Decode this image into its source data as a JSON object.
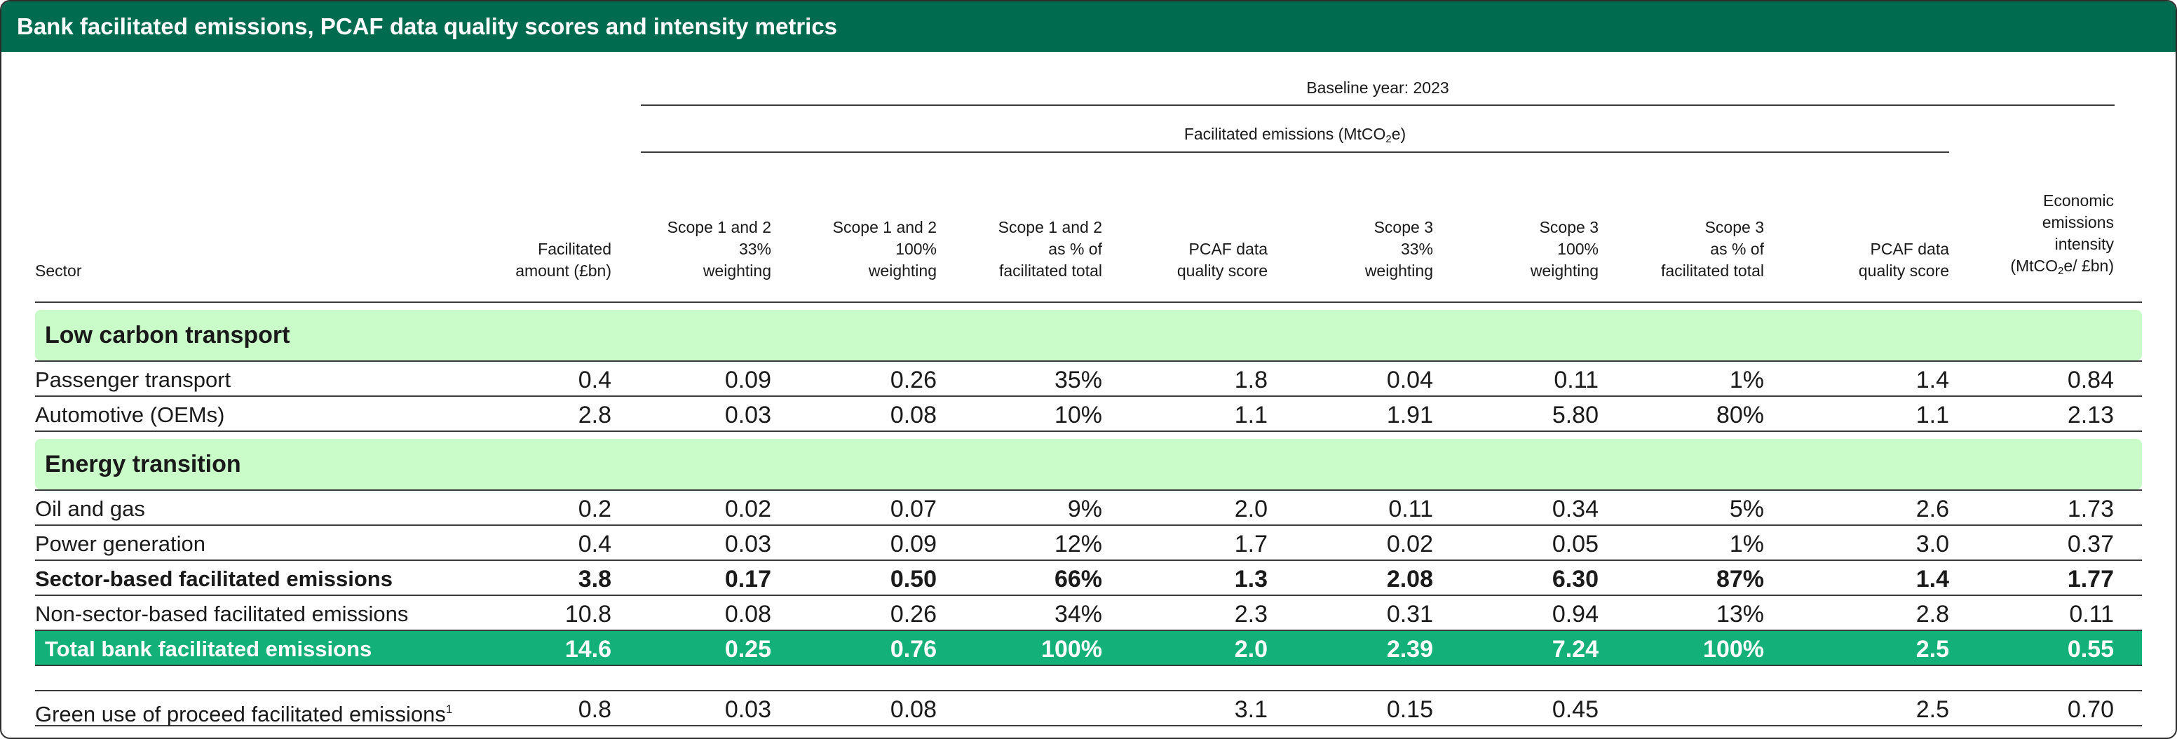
{
  "title": "Bank facilitated emissions, PCAF data quality scores and intensity metrics",
  "baseline_label": "Baseline year: 2023",
  "facilitated_emissions_label": "Facilitated emissions (MtCO",
  "facilitated_emissions_sub": "2",
  "facilitated_emissions_suffix": "e)",
  "columns": {
    "sector": "Sector",
    "amount": [
      "Facilitated",
      "amount (£bn)"
    ],
    "s12_33": [
      "Scope 1 and 2",
      "33%",
      "weighting"
    ],
    "s12_100": [
      "Scope 1 and 2",
      "100%",
      "weighting"
    ],
    "s12_pct": [
      "Scope 1 and 2",
      "as % of",
      "facilitated total"
    ],
    "pcaf1": [
      "PCAF data",
      "quality score"
    ],
    "s3_33": [
      "Scope 3",
      "33%",
      "weighting"
    ],
    "s3_100": [
      "Scope 3",
      "100%",
      "weighting"
    ],
    "s3_pct": [
      "Scope 3",
      "as % of",
      "facilitated total"
    ],
    "pcaf2": [
      "PCAF data",
      "quality score"
    ],
    "intensity": [
      "Economic",
      "emissions",
      "intensity",
      "(MtCO",
      "2",
      "e/ £bn)"
    ]
  },
  "sections": {
    "low_carbon": "Low carbon transport",
    "energy": "Energy transition"
  },
  "rows": {
    "passenger": [
      "Passenger transport",
      "0.4",
      "0.09",
      "0.26",
      "35%",
      "1.8",
      "0.04",
      "0.11",
      "1%",
      "1.4",
      "0.84"
    ],
    "automotive": [
      "Automotive (OEMs)",
      "2.8",
      "0.03",
      "0.08",
      "10%",
      "1.1",
      "1.91",
      "5.80",
      "80%",
      "1.1",
      "2.13"
    ],
    "oil_gas": [
      "Oil and gas",
      "0.2",
      "0.02",
      "0.07",
      "9%",
      "2.0",
      "0.11",
      "0.34",
      "5%",
      "2.6",
      "1.73"
    ],
    "power": [
      "Power generation",
      "0.4",
      "0.03",
      "0.09",
      "12%",
      "1.7",
      "0.02",
      "0.05",
      "1%",
      "3.0",
      "0.37"
    ],
    "sector_based": [
      "Sector-based facilitated emissions",
      "3.8",
      "0.17",
      "0.50",
      "66%",
      "1.3",
      "2.08",
      "6.30",
      "87%",
      "1.4",
      "1.77"
    ],
    "non_sector": [
      "Non-sector-based facilitated emissions",
      "10.8",
      "0.08",
      "0.26",
      "34%",
      "2.3",
      "0.31",
      "0.94",
      "13%",
      "2.8",
      "0.11"
    ],
    "total": [
      "Total bank facilitated emissions",
      "14.6",
      "0.25",
      "0.76",
      "100%",
      "2.0",
      "2.39",
      "7.24",
      "100%",
      "2.5",
      "0.55"
    ],
    "green": [
      "Green use of proceed facilitated emissions",
      "0.8",
      "0.03",
      "0.08",
      "",
      "3.1",
      "0.15",
      "0.45",
      "",
      "2.5",
      "0.70"
    ]
  },
  "green_footnote": "1",
  "colors": {
    "title_bar": "#006b4f",
    "section_band": "#c9fcc9",
    "total_band": "#13b07a"
  }
}
